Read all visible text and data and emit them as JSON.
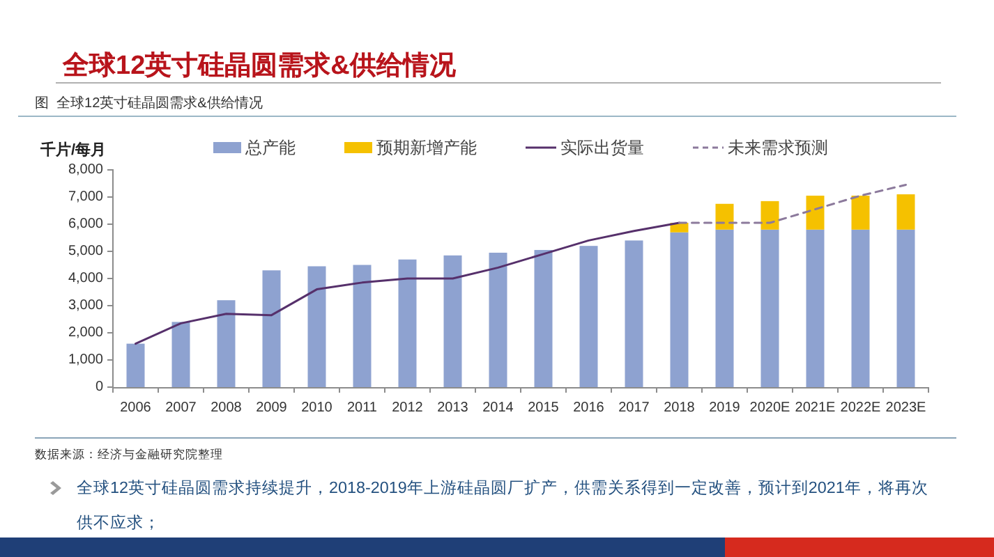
{
  "chart_data": {
    "type": "bar",
    "title": "全球12英寸硅晶圆需求&供给情况",
    "subtitle": "图  全球12英寸硅晶圆需求&供给情况",
    "ylabel": "千片/每月",
    "categories": [
      "2006",
      "2007",
      "2008",
      "2009",
      "2010",
      "2011",
      "2012",
      "2013",
      "2014",
      "2015",
      "2016",
      "2017",
      "2018",
      "2019",
      "2020E",
      "2021E",
      "2022E",
      "2023E"
    ],
    "stacked": true,
    "legend": "top",
    "ylim": [
      0,
      8000
    ],
    "yticks": [
      0,
      {
        "value": 1000,
        "label": "1,000"
      },
      {
        "value": 2000,
        "label": "2,000"
      },
      {
        "value": 3000,
        "label": "3,000"
      },
      {
        "value": 4000,
        "label": "4,000"
      },
      {
        "value": 5000,
        "label": "5,000"
      },
      {
        "value": 6000,
        "label": "6,000"
      },
      {
        "value": 7000,
        "label": "7,000"
      },
      {
        "value": 8000,
        "label": "8,000"
      }
    ],
    "series": [
      {
        "name": "总产能",
        "color": "#8ea2d0",
        "values": [
          1600,
          2400,
          3200,
          4300,
          4450,
          4500,
          4700,
          4850,
          4950,
          5050,
          5200,
          5400,
          5700,
          5800,
          5800,
          5800,
          5800,
          5800
        ]
      },
      {
        "name": "预期新增产能",
        "color": "#f5c100",
        "values": [
          null,
          null,
          null,
          null,
          null,
          null,
          null,
          null,
          null,
          null,
          null,
          null,
          350,
          950,
          1050,
          1250,
          1250,
          1300
        ]
      },
      {
        "name": "实际出货量",
        "type": "line",
        "color": "#56306b",
        "values": [
          1600,
          2350,
          2700,
          2650,
          3600,
          3850,
          4000,
          4000,
          4400,
          4900,
          5400,
          5750,
          6050,
          null,
          null,
          null,
          null,
          null
        ]
      },
      {
        "name": "未来需求预测",
        "type": "line",
        "line_style": "dashed",
        "color": "#8c7a9c",
        "values": [
          null,
          null,
          null,
          null,
          null,
          null,
          null,
          null,
          null,
          null,
          null,
          null,
          6050,
          6050,
          6050,
          6550,
          7050,
          7450
        ]
      }
    ],
    "annotations": [
      "数据来源：经济与金融研究院整理",
      "全球12英寸硅晶圆需求持续提升，2018-2019年上游硅晶圆厂扩产，供需关系得到一定改善，预计到2021年，将再次供不应求；"
    ]
  }
}
